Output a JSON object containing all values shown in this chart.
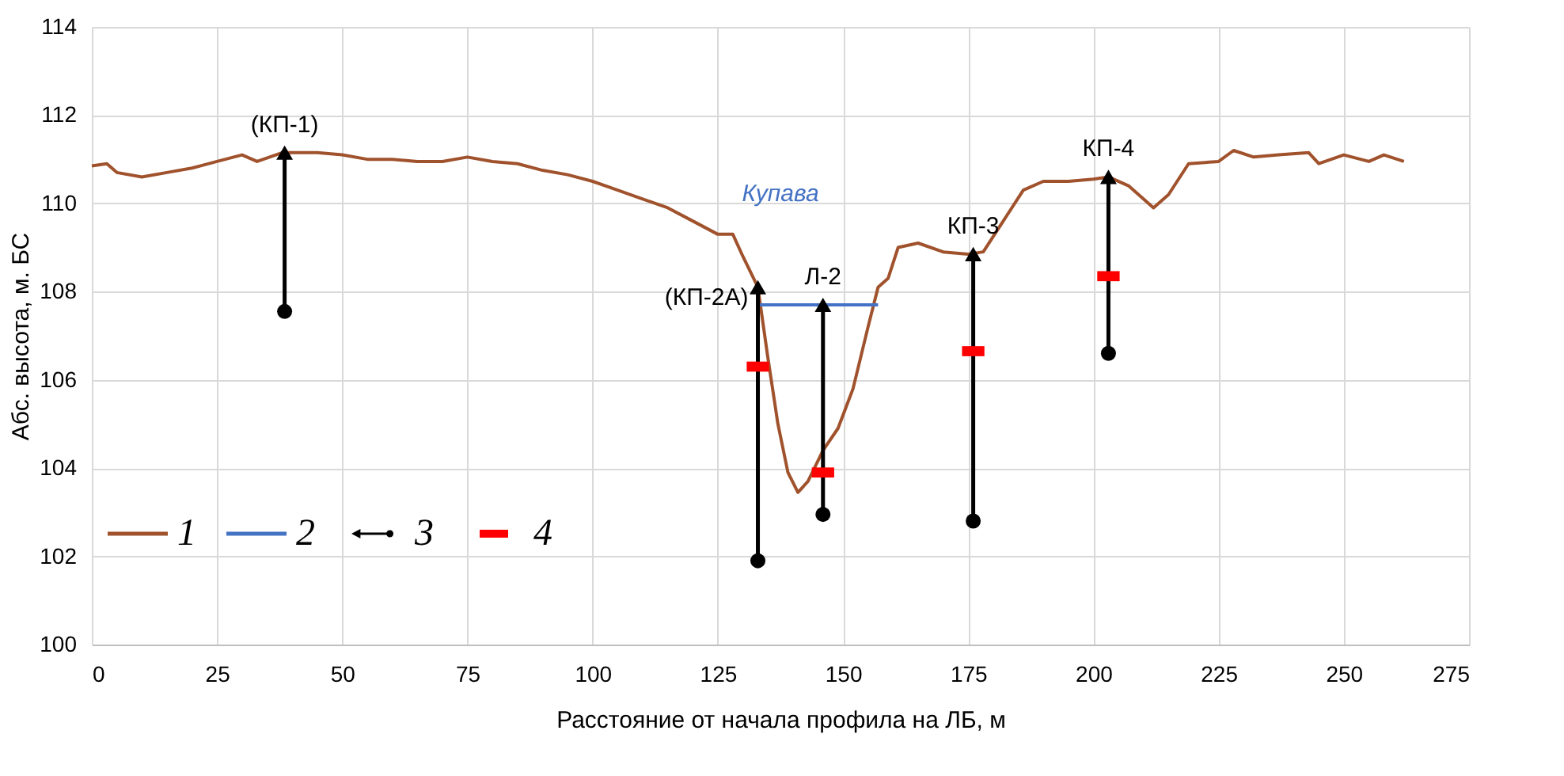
{
  "chart_data": {
    "type": "line",
    "xlabel": "Расстояние от начала профила на ЛБ, м",
    "ylabel": "Абс. высота, м. БС",
    "xlim": [
      0,
      275
    ],
    "xticks": [
      0,
      25,
      50,
      75,
      100,
      125,
      150,
      175,
      200,
      225,
      250,
      275
    ],
    "ylim": [
      100,
      114
    ],
    "yticks": [
      100,
      102,
      104,
      106,
      108,
      110,
      112,
      114
    ],
    "grid": true,
    "legend": "bottom left",
    "series": [
      {
        "name": "1",
        "color": "#a0522d",
        "x": [
          0,
          3,
          5,
          10,
          15,
          20,
          25,
          30,
          33,
          38,
          45,
          50,
          55,
          60,
          65,
          70,
          75,
          80,
          85,
          90,
          95,
          100,
          105,
          110,
          115,
          120,
          125,
          128,
          130,
          133,
          135,
          137,
          139,
          141,
          143,
          146,
          149,
          152,
          155,
          157,
          159,
          161,
          165,
          170,
          175,
          178,
          182,
          186,
          190,
          195,
          200,
          203,
          207,
          212,
          215,
          219,
          225,
          228,
          232,
          237,
          243,
          245,
          250,
          255,
          258,
          262
        ],
        "values": [
          110.85,
          110.9,
          110.7,
          110.6,
          110.7,
          110.8,
          110.95,
          111.1,
          110.95,
          111.15,
          111.15,
          111.1,
          111.0,
          111.0,
          110.95,
          110.95,
          111.05,
          110.95,
          110.9,
          110.75,
          110.65,
          110.5,
          110.3,
          110.1,
          109.9,
          109.6,
          109.3,
          109.3,
          108.8,
          108.1,
          106.5,
          105.0,
          103.9,
          103.45,
          103.7,
          104.4,
          104.9,
          105.8,
          107.2,
          108.1,
          108.3,
          109.0,
          109.1,
          108.9,
          108.85,
          108.9,
          109.6,
          110.3,
          110.5,
          110.5,
          110.55,
          110.6,
          110.4,
          109.9,
          110.2,
          110.9,
          110.95,
          111.2,
          111.05,
          111.1,
          111.15,
          110.9,
          111.1,
          110.95,
          111.1,
          110.95
        ]
      },
      {
        "name": "2",
        "type": "line",
        "color": "#4472c4",
        "x": [
          133,
          157
        ],
        "values": [
          107.7,
          107.7
        ]
      },
      {
        "type": "line",
        "color": "#000000",
        "x": [
          38.5,
          38.5
        ],
        "values": [
          107.55,
          111.15
        ]
      },
      {
        "type": "line",
        "color": "#000000",
        "x": [
          133,
          133
        ],
        "values": [
          101.9,
          108.1
        ]
      },
      {
        "type": "line",
        "color": "#000000",
        "x": [
          146,
          146
        ],
        "values": [
          102.95,
          107.7
        ]
      },
      {
        "type": "line",
        "color": "#000000",
        "x": [
          176,
          176
        ],
        "values": [
          102.8,
          108.85
        ]
      },
      {
        "type": "line",
        "color": "#000000",
        "x": [
          203,
          203
        ],
        "values": [
          106.6,
          110.6
        ]
      },
      {
        "name": "3",
        "type": "scatter",
        "marker": "circle",
        "color": "#000000",
        "x": [
          38.5,
          133,
          146,
          176,
          203
        ],
        "values": [
          107.55,
          101.9,
          102.95,
          102.8,
          106.6
        ]
      },
      {
        "type": "scatter",
        "marker": "triangle",
        "color": "#000000",
        "x": [
          38.5,
          133,
          146,
          176,
          203
        ],
        "values": [
          111.15,
          108.1,
          107.7,
          108.85,
          110.6
        ]
      },
      {
        "name": "4",
        "type": "scatter",
        "marker": "square",
        "color": "#ff0000",
        "x": [
          133,
          146,
          176,
          203
        ],
        "values": [
          106.3,
          103.9,
          106.65,
          108.35
        ]
      }
    ],
    "annotations": [
      {
        "text": "(КП-1)",
        "x": 38.5,
        "y": 111.15
      },
      {
        "text": "(КП-2А)",
        "x": 133,
        "y": 108.1
      },
      {
        "text": "Л-2",
        "x": 146,
        "y": 107.7
      },
      {
        "text": "КП-3",
        "x": 176,
        "y": 108.85
      },
      {
        "text": "КП-4",
        "x": 203,
        "y": 110.6
      },
      "Купава"
    ]
  }
}
